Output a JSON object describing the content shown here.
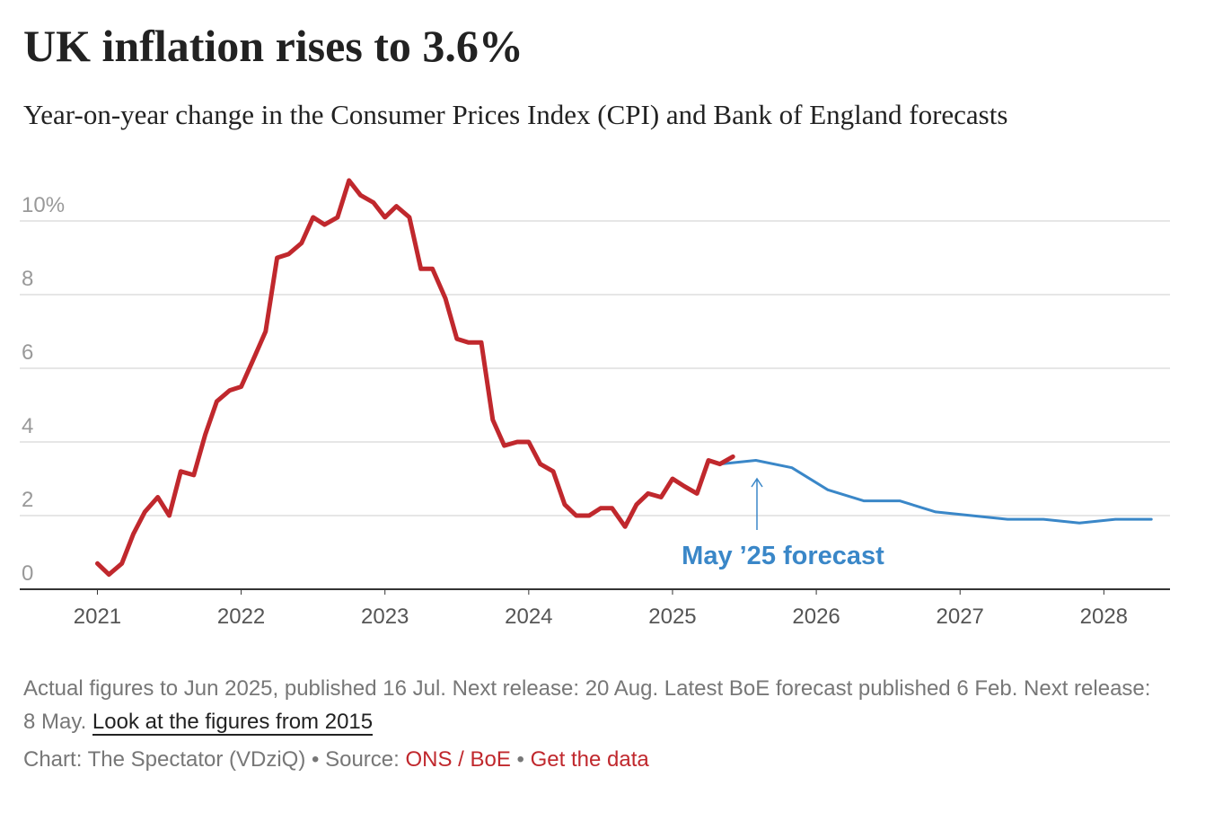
{
  "chart_data": {
    "type": "line",
    "title": "UK inflation rises to 3.6%",
    "subtitle": "Year-on-year change in the Consumer Prices Index (CPI) and Bank of England forecasts",
    "annotation": "May ’25 forecast",
    "xlim": [
      2020.46,
      2028.46
    ],
    "xticks": [
      2021,
      2022,
      2023,
      2024,
      2025,
      2026,
      2027,
      2028
    ],
    "ylim": [
      0,
      11.5
    ],
    "yticks": [
      0,
      2,
      4,
      6,
      8,
      {
        "value": 10,
        "label": "10%"
      }
    ],
    "grid": true,
    "series": [
      {
        "color": "#c0282d",
        "x": [
          2021.0,
          2021.08,
          2021.17,
          2021.25,
          2021.33,
          2021.42,
          2021.5,
          2021.58,
          2021.67,
          2021.75,
          2021.83,
          2021.92,
          2022.0,
          2022.08,
          2022.17,
          2022.25,
          2022.33,
          2022.42,
          2022.5,
          2022.58,
          2022.67,
          2022.75,
          2022.83,
          2022.92,
          2023.0,
          2023.08,
          2023.17,
          2023.25,
          2023.33,
          2023.42,
          2023.5,
          2023.58,
          2023.67,
          2023.75,
          2023.83,
          2023.92,
          2024.0,
          2024.08,
          2024.17,
          2024.25,
          2024.33,
          2024.42,
          2024.5,
          2024.58,
          2024.67,
          2024.75,
          2024.83,
          2024.92,
          2025.0,
          2025.08,
          2025.17,
          2025.25,
          2025.33,
          2025.42
        ],
        "values": [
          0.7,
          0.4,
          0.7,
          1.5,
          2.1,
          2.5,
          2.0,
          3.2,
          3.1,
          4.2,
          5.1,
          5.4,
          5.5,
          6.2,
          7.0,
          9.0,
          9.1,
          9.4,
          10.1,
          9.9,
          10.1,
          11.1,
          10.7,
          10.5,
          10.1,
          10.4,
          10.1,
          8.7,
          8.7,
          7.9,
          6.8,
          6.7,
          6.7,
          4.6,
          3.9,
          4.0,
          4.0,
          3.4,
          3.2,
          2.3,
          2.0,
          2.0,
          2.2,
          2.2,
          1.7,
          2.3,
          2.6,
          2.5,
          3.0,
          2.8,
          2.6,
          3.5,
          3.4,
          3.6
        ]
      },
      {
        "color": "#3a87c8",
        "x": [
          2025.33,
          2025.58,
          2025.83,
          2026.08,
          2026.33,
          2026.58,
          2026.83,
          2027.08,
          2027.33,
          2027.58,
          2027.83,
          2028.08,
          2028.33
        ],
        "values": [
          3.4,
          3.5,
          3.3,
          2.7,
          2.4,
          2.4,
          2.1,
          2.0,
          1.9,
          1.9,
          1.8,
          1.9,
          1.9
        ]
      }
    ],
    "note": "Actual figures to Jun 2025, published 16 Jul. Next release: 20 Aug. Latest BoE forecast published 6 Feb. Next release: 8 May.",
    "note_link": "Look at the figures from 2015",
    "credit": "Chart: The Spectator (VDziQ)",
    "separator": "•",
    "source_label": "Source:",
    "source": "ONS / BoE",
    "get_data": "Get the data"
  }
}
